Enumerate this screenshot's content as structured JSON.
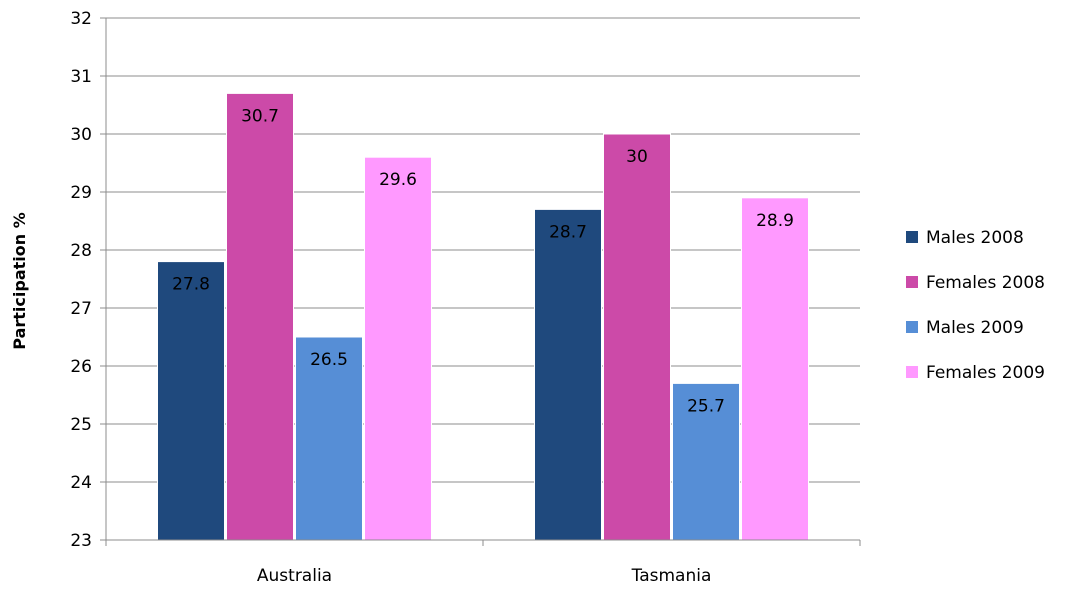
{
  "chart_data": {
    "type": "bar",
    "title": "",
    "xlabel": "",
    "ylabel": "Participation %",
    "ylim": [
      23,
      32
    ],
    "yticks": [
      23,
      24,
      25,
      26,
      27,
      28,
      29,
      30,
      31,
      32
    ],
    "grid": true,
    "legend_position": "right",
    "categories": [
      "Australia",
      "Tasmania"
    ],
    "series": [
      {
        "name": "Males 2008",
        "color": "#1f497d",
        "values": [
          27.8,
          28.7
        ],
        "labels": [
          "27.8",
          "28.7"
        ]
      },
      {
        "name": "Females 2008",
        "color": "#cc4aa8",
        "values": [
          30.7,
          30
        ],
        "labels": [
          "30.7",
          "30"
        ]
      },
      {
        "name": "Males 2009",
        "color": "#568ed6",
        "values": [
          26.5,
          25.7
        ],
        "labels": [
          "26.5",
          "25.7"
        ]
      },
      {
        "name": "Females 2009",
        "color": "#ff99ff",
        "values": [
          29.6,
          28.9
        ],
        "labels": [
          "29.6",
          "28.9"
        ]
      }
    ]
  }
}
